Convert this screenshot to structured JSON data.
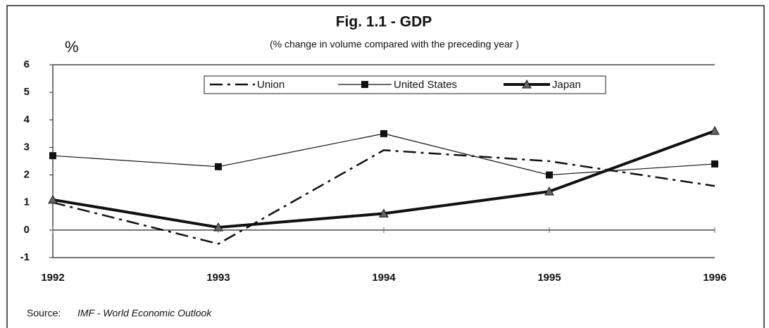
{
  "chart_data": {
    "type": "line",
    "title": "Fig. 1.1 - GDP",
    "subtitle": "(% change in volume compared with the preceding year )",
    "y_label": "%",
    "source_label": "Source:",
    "source_text": "IMF - World Economic Outlook",
    "categories": [
      "1992",
      "1993",
      "1994",
      "1995",
      "1996"
    ],
    "series": [
      {
        "name": "Union",
        "color": "#111111",
        "values": [
          1.0,
          -0.5,
          2.9,
          2.5,
          1.6
        ],
        "line_style": "dashdot",
        "line_width": 2.5,
        "marker": null
      },
      {
        "name": "United States",
        "color": "#111111",
        "values": [
          2.7,
          2.3,
          3.5,
          2.0,
          2.4
        ],
        "line_style": "solid",
        "line_width": 1.2,
        "marker": "square"
      },
      {
        "name": "Japan",
        "color": "#111111",
        "values": [
          1.1,
          0.1,
          0.6,
          1.4,
          3.6
        ],
        "line_style": "solid",
        "line_width": 4,
        "marker": "triangle"
      }
    ],
    "ylim": [
      -1,
      6
    ],
    "yticks": [
      -1,
      0,
      1,
      2,
      3,
      4,
      5,
      6
    ],
    "grid": false,
    "legend": "top"
  }
}
